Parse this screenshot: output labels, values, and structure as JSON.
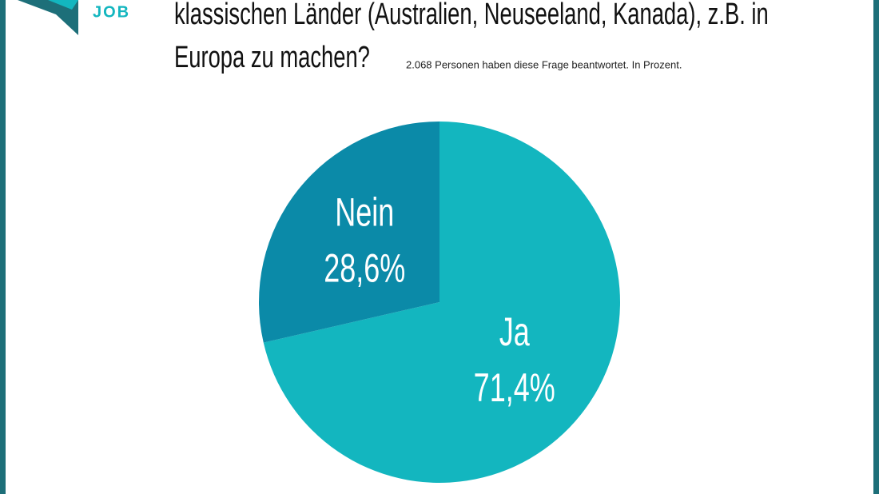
{
  "logo": "JOB",
  "chart_data": {
    "type": "pie",
    "title": [
      "klassischen Länder (Australien, Neuseeland, Kanada), z.B. in",
      "Europa zu machen?"
    ],
    "subtitle": "2.068 Personen haben diese Frage beantwortet. In Prozent.",
    "categories": [
      "Ja",
      "Nein"
    ],
    "values": [
      71.4,
      28.6
    ],
    "value_labels": [
      "71,4%",
      "28,6%"
    ],
    "colors": [
      "#13b6bf",
      "#0b8aa8"
    ]
  }
}
